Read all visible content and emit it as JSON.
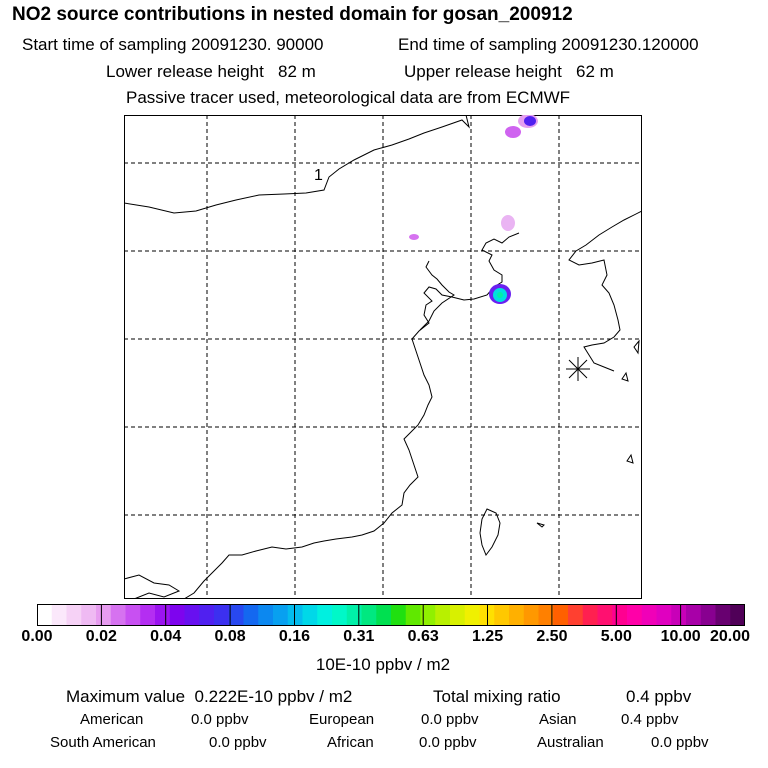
{
  "title": "NO2 source contributions in nested domain for gosan_200912",
  "header": {
    "start_label": "Start time of sampling",
    "start_value": "20091230. 90000",
    "end_label": "End time of sampling",
    "end_value": "20091230.120000",
    "lower_label": "Lower release height",
    "lower_value": "82 m",
    "upper_label": "Upper release height",
    "upper_value": "62 m",
    "note": "Passive tracer used, meteorological data are from ECMWF"
  },
  "map": {
    "marker_label": "1",
    "receptor_symbol": "star-marker"
  },
  "colorbar": {
    "unit": "10E-10 ppbv / m2",
    "tick_labels": [
      "0.00",
      "0.02",
      "0.04",
      "0.08",
      "0.16",
      "0.31",
      "0.63",
      "1.25",
      "2.50",
      "5.00",
      "10.00",
      "20.00"
    ],
    "colors": [
      "#ffffff",
      "#fbe8fb",
      "#f6d2f6",
      "#efbaf3",
      "#e79cf0",
      "#d672f0",
      "#c850f2",
      "#b42ef2",
      "#9b14f0",
      "#7e04ee",
      "#6810f0",
      "#5020f0",
      "#3c30f0",
      "#2848f0",
      "#1468f0",
      "#0c88f0",
      "#08a0f0",
      "#04bcee",
      "#00d8e8",
      "#00f0e0",
      "#00f8c8",
      "#00f0a8",
      "#00e880",
      "#00e050",
      "#20e010",
      "#60e800",
      "#90f000",
      "#b8f000",
      "#d8f000",
      "#f0f000",
      "#ffe000",
      "#ffc800",
      "#ffb000",
      "#ff9800",
      "#ff8000",
      "#ff6000",
      "#ff4030",
      "#ff2050",
      "#ff1070",
      "#ff0090",
      "#ff00a8",
      "#f000b8",
      "#e000c0",
      "#c800b8",
      "#a800a8",
      "#880090",
      "#680070",
      "#500058"
    ]
  },
  "footer": {
    "max_label": "Maximum value",
    "max_value": "0.222E-10 ppbv / m2",
    "total_label": "Total mixing ratio",
    "total_value": "0.4 ppbv",
    "regions": [
      {
        "name": "American",
        "value": "0.0 ppbv"
      },
      {
        "name": "European",
        "value": "0.0 ppbv"
      },
      {
        "name": "Asian",
        "value": "0.4 ppbv"
      },
      {
        "name": "South American",
        "value": "0.0 ppbv"
      },
      {
        "name": "African",
        "value": "0.0 ppbv"
      },
      {
        "name": "Australian",
        "value": "0.0 ppbv"
      }
    ]
  }
}
